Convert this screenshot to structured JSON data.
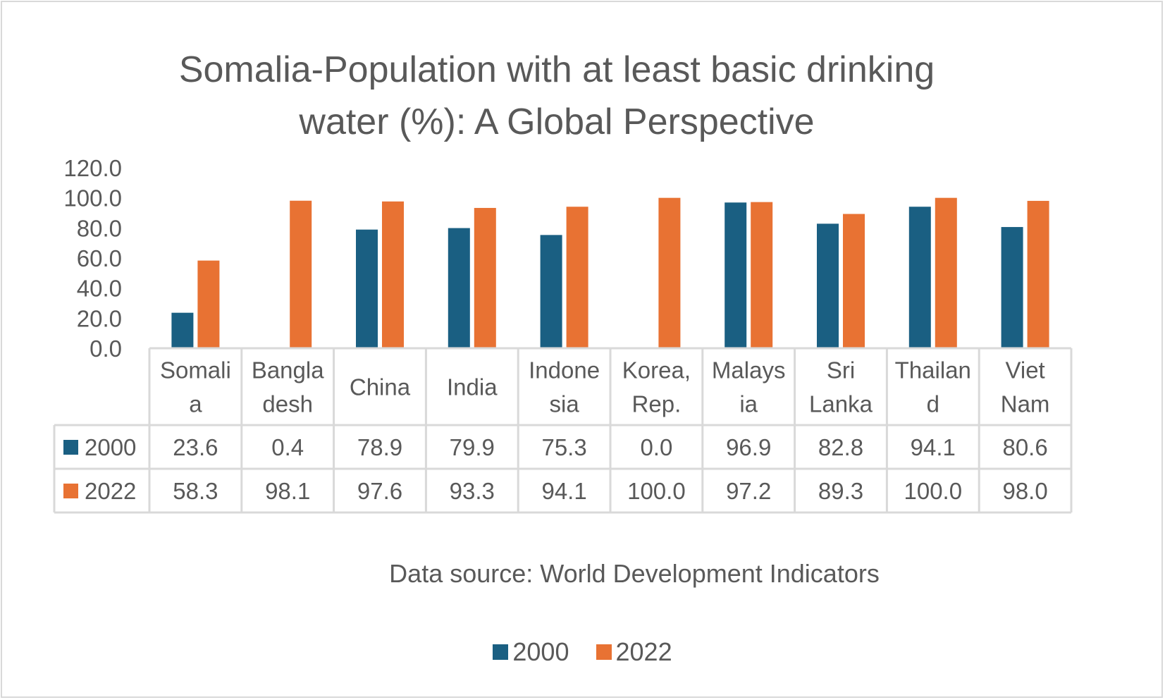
{
  "chart_data": {
    "type": "bar",
    "title": "Somalia-Population with at least basic drinking water (%): A Global Perspective",
    "title_lines": [
      "Somalia-Population with at least basic drinking",
      "water (%): A Global Perspective"
    ],
    "xlabel": "",
    "ylabel": "",
    "ylim": [
      0,
      120
    ],
    "yticks": [
      0,
      20,
      40,
      60,
      80,
      100,
      120
    ],
    "ytick_labels": [
      "0.0",
      "20.0",
      "40.0",
      "60.0",
      "80.0",
      "100.0",
      "120.0"
    ],
    "categories": [
      "Somalia",
      "Bangladesh",
      "China",
      "India",
      "Indonesia",
      "Korea, Rep.",
      "Malaysia",
      "Sri Lanka",
      "Thailand",
      "Viet Nam"
    ],
    "category_label_lines": [
      [
        "Somali",
        "a"
      ],
      [
        "Bangla",
        "desh"
      ],
      [
        "China"
      ],
      [
        "India"
      ],
      [
        "Indone",
        "sia"
      ],
      [
        "Korea,",
        "Rep."
      ],
      [
        "Malays",
        "ia"
      ],
      [
        "Sri",
        "Lanka"
      ],
      [
        "Thailan",
        "d"
      ],
      [
        "Viet",
        "Nam"
      ]
    ],
    "series": [
      {
        "name": "2000",
        "color": "#1a5f82",
        "values": [
          23.6,
          0.4,
          78.9,
          79.9,
          75.3,
          0.0,
          96.9,
          82.8,
          94.1,
          80.6
        ],
        "value_labels": [
          "23.6",
          "0.4",
          "78.9",
          "79.9",
          "75.3",
          "0.0",
          "96.9",
          "82.8",
          "94.1",
          "80.6"
        ]
      },
      {
        "name": "2022",
        "color": "#e87233",
        "values": [
          58.3,
          98.1,
          97.6,
          93.3,
          94.1,
          100.0,
          97.2,
          89.3,
          100.0,
          98.0
        ],
        "value_labels": [
          "58.3",
          "98.1",
          "97.6",
          "93.3",
          "94.1",
          "100.0",
          "97.2",
          "89.3",
          "100.0",
          "98.0"
        ]
      }
    ],
    "grid": false,
    "data_table": true,
    "legend_position": "bottom",
    "source_note": "Data source: World Development Indicators"
  }
}
